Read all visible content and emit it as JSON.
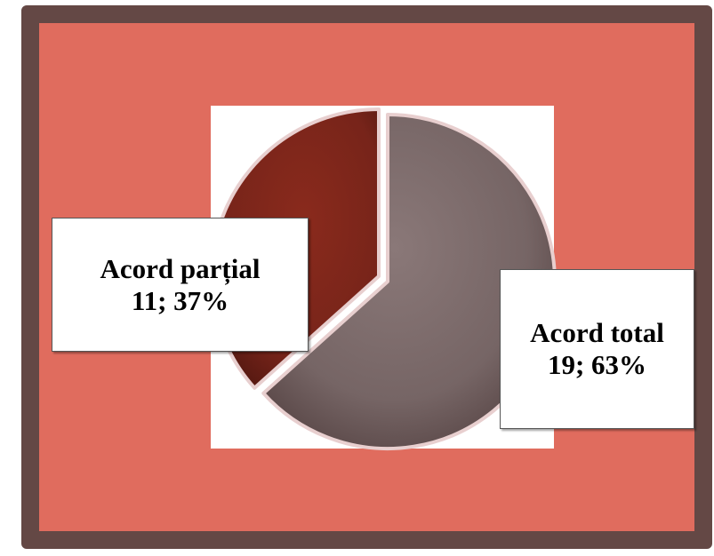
{
  "chart_data": {
    "type": "pie",
    "title": "",
    "slices": [
      {
        "name": "Acord parțial",
        "value": 11,
        "percent": "37%",
        "label_value": "11;  37%",
        "color": "#7a2519"
      },
      {
        "name": "Acord total",
        "value": 19,
        "percent": "63%",
        "label_value": "19; 63%",
        "color": "#786767"
      }
    ],
    "legend": "none"
  },
  "colors": {
    "frame_border": "#644845",
    "frame_fill": "#e06c5e",
    "plot_area": "#ffffff",
    "separator": "#e8cfcf"
  }
}
